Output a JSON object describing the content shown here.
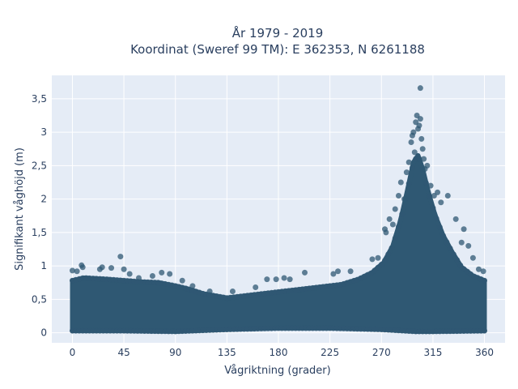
{
  "chart_data": {
    "type": "scatter",
    "title_line1": "År 1979 - 2019",
    "title_line2": "Koordinat (Sweref 99 TM): E 362353, N 6261188",
    "xlabel": "Vågriktning (grader)",
    "ylabel": "Signifikant våghöjd (m)",
    "xlim": [
      -18,
      378
    ],
    "ylim": [
      -0.15,
      3.85
    ],
    "x_ticks": [
      0,
      45,
      90,
      135,
      180,
      225,
      270,
      315,
      360
    ],
    "x_tick_labels": [
      "0",
      "45",
      "90",
      "135",
      "180",
      "225",
      "270",
      "315",
      "360"
    ],
    "y_ticks": [
      0,
      0.5,
      1,
      1.5,
      2,
      2.5,
      3,
      3.5
    ],
    "y_tick_labels": [
      "0",
      "0,5",
      "1",
      "1,5",
      "2",
      "2,5",
      "3",
      "3,5"
    ],
    "grid": true,
    "colors": {
      "plot_background": "#e5ecf6",
      "gridline": "#ffffff",
      "marker": "#2f5873",
      "text": "#2a3f5f"
    },
    "points": [
      {
        "x": 0,
        "y": 0.93
      },
      {
        "x": 4,
        "y": 0.92
      },
      {
        "x": 8,
        "y": 1.01
      },
      {
        "x": 9,
        "y": 0.98
      },
      {
        "x": 24,
        "y": 0.95
      },
      {
        "x": 26,
        "y": 0.98
      },
      {
        "x": 34,
        "y": 0.97
      },
      {
        "x": 42,
        "y": 1.14
      },
      {
        "x": 45,
        "y": 0.95
      },
      {
        "x": 50,
        "y": 0.88
      },
      {
        "x": 58,
        "y": 0.82
      },
      {
        "x": 70,
        "y": 0.85
      },
      {
        "x": 78,
        "y": 0.9
      },
      {
        "x": 85,
        "y": 0.88
      },
      {
        "x": 96,
        "y": 0.78
      },
      {
        "x": 105,
        "y": 0.7
      },
      {
        "x": 120,
        "y": 0.62
      },
      {
        "x": 140,
        "y": 0.62
      },
      {
        "x": 160,
        "y": 0.68
      },
      {
        "x": 170,
        "y": 0.8
      },
      {
        "x": 178,
        "y": 0.8
      },
      {
        "x": 185,
        "y": 0.82
      },
      {
        "x": 190,
        "y": 0.8
      },
      {
        "x": 203,
        "y": 0.9
      },
      {
        "x": 228,
        "y": 0.88
      },
      {
        "x": 232,
        "y": 0.92
      },
      {
        "x": 243,
        "y": 0.92
      },
      {
        "x": 262,
        "y": 1.1
      },
      {
        "x": 267,
        "y": 1.12
      },
      {
        "x": 273,
        "y": 1.55
      },
      {
        "x": 274,
        "y": 1.5
      },
      {
        "x": 277,
        "y": 1.7
      },
      {
        "x": 280,
        "y": 1.62
      },
      {
        "x": 282,
        "y": 1.85
      },
      {
        "x": 285,
        "y": 2.05
      },
      {
        "x": 287,
        "y": 2.25
      },
      {
        "x": 290,
        "y": 2.0
      },
      {
        "x": 292,
        "y": 2.4
      },
      {
        "x": 294,
        "y": 2.55
      },
      {
        "x": 296,
        "y": 2.85
      },
      {
        "x": 297,
        "y": 2.95
      },
      {
        "x": 298,
        "y": 3.0
      },
      {
        "x": 299,
        "y": 2.7
      },
      {
        "x": 300,
        "y": 3.15
      },
      {
        "x": 301,
        "y": 3.25
      },
      {
        "x": 302,
        "y": 3.05
      },
      {
        "x": 303,
        "y": 3.1
      },
      {
        "x": 304,
        "y": 3.2
      },
      {
        "x": 305,
        "y": 2.9
      },
      {
        "x": 306,
        "y": 2.75
      },
      {
        "x": 307,
        "y": 2.6
      },
      {
        "x": 308,
        "y": 2.45
      },
      {
        "x": 310,
        "y": 2.5
      },
      {
        "x": 313,
        "y": 2.2
      },
      {
        "x": 316,
        "y": 2.05
      },
      {
        "x": 319,
        "y": 2.1
      },
      {
        "x": 322,
        "y": 1.95
      },
      {
        "x": 328,
        "y": 2.05
      },
      {
        "x": 335,
        "y": 1.7
      },
      {
        "x": 340,
        "y": 1.35
      },
      {
        "x": 342,
        "y": 1.55
      },
      {
        "x": 346,
        "y": 1.3
      },
      {
        "x": 350,
        "y": 1.12
      },
      {
        "x": 355,
        "y": 0.95
      },
      {
        "x": 359,
        "y": 0.92
      },
      {
        "x": 304,
        "y": 3.66
      }
    ],
    "envelope": [
      {
        "x": 0,
        "y": 0.78
      },
      {
        "x": 10,
        "y": 0.82
      },
      {
        "x": 30,
        "y": 0.8
      },
      {
        "x": 45,
        "y": 0.78
      },
      {
        "x": 60,
        "y": 0.76
      },
      {
        "x": 75,
        "y": 0.75
      },
      {
        "x": 90,
        "y": 0.7
      },
      {
        "x": 100,
        "y": 0.66
      },
      {
        "x": 115,
        "y": 0.58
      },
      {
        "x": 135,
        "y": 0.52
      },
      {
        "x": 155,
        "y": 0.56
      },
      {
        "x": 175,
        "y": 0.6
      },
      {
        "x": 195,
        "y": 0.64
      },
      {
        "x": 215,
        "y": 0.68
      },
      {
        "x": 235,
        "y": 0.72
      },
      {
        "x": 250,
        "y": 0.8
      },
      {
        "x": 262,
        "y": 0.9
      },
      {
        "x": 272,
        "y": 1.05
      },
      {
        "x": 280,
        "y": 1.3
      },
      {
        "x": 287,
        "y": 1.7
      },
      {
        "x": 293,
        "y": 2.15
      },
      {
        "x": 298,
        "y": 2.55
      },
      {
        "x": 302,
        "y": 2.65
      },
      {
        "x": 306,
        "y": 2.45
      },
      {
        "x": 311,
        "y": 2.1
      },
      {
        "x": 317,
        "y": 1.75
      },
      {
        "x": 324,
        "y": 1.45
      },
      {
        "x": 332,
        "y": 1.2
      },
      {
        "x": 340,
        "y": 0.98
      },
      {
        "x": 350,
        "y": 0.85
      },
      {
        "x": 360,
        "y": 0.78
      }
    ],
    "floor": [
      {
        "x": 0,
        "y": 0.03
      },
      {
        "x": 45,
        "y": 0.03
      },
      {
        "x": 90,
        "y": 0.02
      },
      {
        "x": 135,
        "y": 0.05
      },
      {
        "x": 180,
        "y": 0.07
      },
      {
        "x": 225,
        "y": 0.07
      },
      {
        "x": 270,
        "y": 0.05
      },
      {
        "x": 300,
        "y": 0.02
      },
      {
        "x": 315,
        "y": 0.02
      },
      {
        "x": 360,
        "y": 0.03
      }
    ]
  }
}
